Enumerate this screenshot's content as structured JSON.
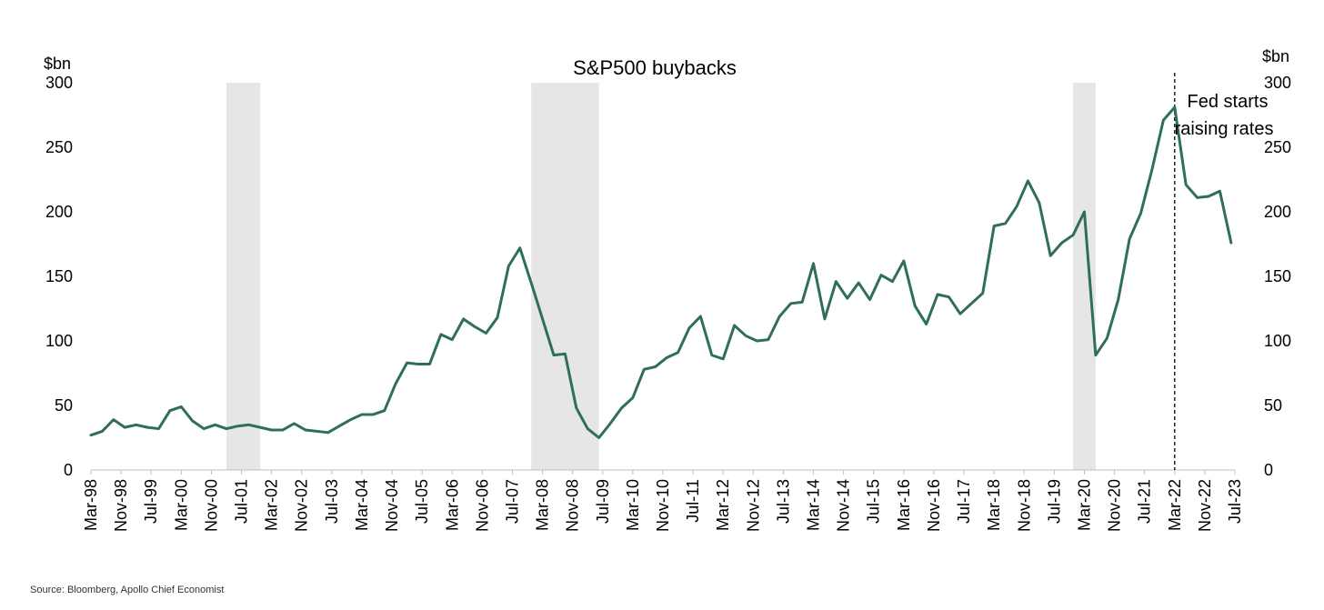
{
  "chart_data": {
    "type": "line",
    "title": "S&P500 buybacks",
    "ylabel_left": "$bn",
    "ylabel_right": "$bn",
    "ylim": [
      0,
      300
    ],
    "yticks": [
      0,
      50,
      100,
      150,
      200,
      250,
      300
    ],
    "x_tick_labels": [
      "Mar-98",
      "Nov-98",
      "Jul-99",
      "Mar-00",
      "Nov-00",
      "Jul-01",
      "Mar-02",
      "Nov-02",
      "Jul-03",
      "Mar-04",
      "Nov-04",
      "Jul-05",
      "Mar-06",
      "Nov-06",
      "Jul-07",
      "Mar-08",
      "Nov-08",
      "Jul-09",
      "Mar-10",
      "Nov-10",
      "Jul-11",
      "Mar-12",
      "Nov-12",
      "Jul-13",
      "Mar-14",
      "Nov-14",
      "Jul-15",
      "Mar-16",
      "Nov-16",
      "Jul-17",
      "Mar-18",
      "Nov-18",
      "Jul-19",
      "Mar-20",
      "Nov-20",
      "Jul-21",
      "Mar-22",
      "Nov-22",
      "Jul-23"
    ],
    "x_start": "Mar-98",
    "x_frequency": "quarterly",
    "series": [
      {
        "color": "#2e6f55",
        "values": [
          27,
          30,
          39,
          33,
          35,
          33,
          32,
          46,
          49,
          38,
          32,
          35,
          32,
          34,
          35,
          33,
          31,
          31,
          36,
          31,
          30,
          29,
          34,
          39,
          43,
          43,
          46,
          67,
          83,
          82,
          82,
          105,
          101,
          117,
          111,
          106,
          118,
          158,
          172,
          145,
          117,
          89,
          90,
          48,
          32,
          25,
          36,
          48,
          56,
          78,
          80,
          87,
          91,
          110,
          119,
          89,
          86,
          112,
          104,
          100,
          101,
          119,
          129,
          130,
          160,
          117,
          146,
          133,
          145,
          132,
          151,
          146,
          162,
          127,
          113,
          136,
          134,
          121,
          129,
          137,
          189,
          191,
          204,
          224,
          207,
          166,
          176,
          182,
          200,
          89,
          102,
          132,
          179,
          199,
          233,
          271,
          281,
          221,
          211,
          212,
          216,
          176
        ]
      }
    ],
    "recessions": [
      [
        "Mar-01",
        "Dec-01"
      ],
      [
        "Dec-07",
        "Jun-09"
      ],
      [
        "Dec-19",
        "Jun-20"
      ]
    ],
    "annotation": {
      "line1": "Fed starts",
      "line2": "raising rates",
      "at": "Mar-22"
    },
    "grid": false,
    "legend": "none"
  },
  "source": "Source: Bloomberg, Apollo Chief Economist"
}
